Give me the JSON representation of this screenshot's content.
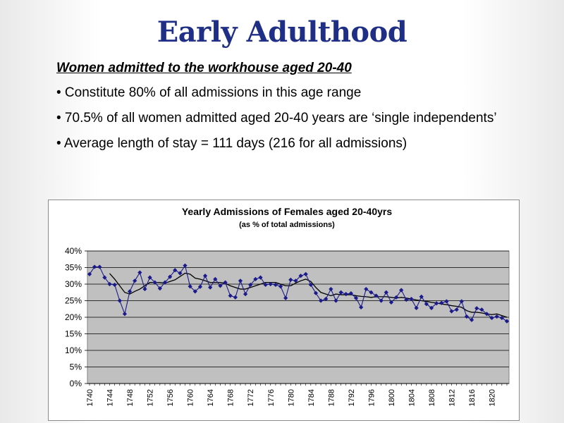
{
  "slide": {
    "title": "Early Adulthood",
    "subheading": "Women admitted to the workhouse aged 20-40",
    "bullets": [
      "• Constitute 80% of all admissions in this age range",
      "• 70.5% of all women admitted aged 20-40 years are ‘single independents’",
      "• Average length of stay = 111 days (216 for all admissions)"
    ]
  },
  "colors": {
    "title": "#1f2f86",
    "plot_area": "#c0c0c0",
    "series": "#1a1a8c",
    "trend": "#000000"
  },
  "chart_data": {
    "type": "line",
    "title": "Yearly Admissions of Females aged 20-40yrs",
    "subtitle": "(as % of total admissions)",
    "xlabel": "",
    "ylabel": "",
    "ylim": [
      0,
      40
    ],
    "yticks": [
      "0%",
      "5%",
      "10%",
      "15%",
      "20%",
      "25%",
      "30%",
      "35%",
      "40%"
    ],
    "xticks": [
      "1740",
      "1744",
      "1748",
      "1752",
      "1756",
      "1760",
      "1764",
      "1768",
      "1772",
      "1776",
      "1780",
      "1784",
      "1788",
      "1792",
      "1796",
      "1800",
      "1804",
      "1808",
      "1812",
      "1816",
      "1820"
    ],
    "grid": true,
    "legend": "none",
    "x_start": 1740,
    "x_end": 1823,
    "series": [
      {
        "values": [
          33,
          35.2,
          35.2,
          32,
          30,
          29.8,
          25,
          21,
          27.8,
          31,
          33.5,
          28.5,
          32,
          30.5,
          28.7,
          30.5,
          32.2,
          34.2,
          33.3,
          35.6,
          29.3,
          27.8,
          29.2,
          32.5,
          29,
          31.5,
          29.5,
          30.5,
          26.5,
          26,
          31,
          27,
          29.8,
          31.5,
          32,
          29.8,
          30,
          29.8,
          29.3,
          25.8,
          31.3,
          31,
          32.5,
          33,
          29.8,
          27.3,
          25,
          25.5,
          28.5,
          25,
          27.5,
          27,
          27.2,
          25.8,
          23,
          28.5,
          27.5,
          26.5,
          25,
          27.5,
          24.5,
          26,
          28.2,
          25.3,
          25.5,
          22.8,
          26.2,
          24,
          22.8,
          24.2,
          24.3,
          24.8,
          21.8,
          22.3,
          24.8,
          20.2,
          19.2,
          22.7,
          22.3,
          21,
          19.8,
          20.2,
          19.8,
          18.8
        ]
      },
      {
        "values": [
          null,
          null,
          null,
          null,
          33.2,
          31.5,
          29.5,
          27.5,
          27,
          27.8,
          28.5,
          29.5,
          30.5,
          30.5,
          30.5,
          30.3,
          30.8,
          31.3,
          32.3,
          33.3,
          33,
          31.8,
          31.5,
          31,
          30.5,
          30.5,
          30.5,
          30.2,
          29.5,
          29,
          28.5,
          28.5,
          29,
          29.5,
          30,
          30.5,
          30.5,
          30.5,
          30,
          29.5,
          29.5,
          30.3,
          31,
          31.5,
          30.8,
          29,
          27.5,
          27,
          26.5,
          27,
          26.8,
          26.8,
          26.8,
          26.5,
          26.3,
          26.2,
          26,
          26.2,
          26.2,
          26.2,
          26,
          25.8,
          26,
          25.8,
          25.5,
          25.2,
          25,
          24.8,
          24.5,
          24.3,
          24,
          23.8,
          23.5,
          23.3,
          23,
          22,
          21.5,
          21.5,
          21.3,
          21,
          20.8,
          21,
          20.5,
          20
        ]
      }
    ]
  }
}
